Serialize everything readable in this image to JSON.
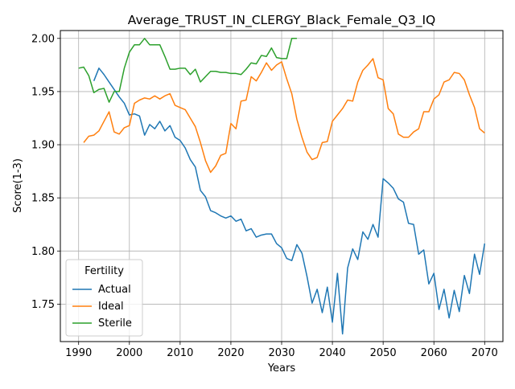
{
  "chart_data": {
    "type": "line",
    "title": "Average_TRUST_IN_CLERGY_Black_Female_Q3_IQ",
    "xlabel": "Years",
    "ylabel": "Score(1-3)",
    "xlim": [
      1986.4,
      2073.6
    ],
    "ylim": [
      1.7148,
      2.0074
    ],
    "xticks": [
      1990,
      2000,
      2010,
      2020,
      2030,
      2040,
      2050,
      2060,
      2070
    ],
    "yticks": [
      1.75,
      1.8,
      1.85,
      1.9,
      1.95,
      2.0
    ],
    "grid": true,
    "legend": {
      "title": "Fertility",
      "placement": "lower-left"
    },
    "series": [
      {
        "name": "Actual",
        "color": "#1f77b4",
        "x": [
          1993,
          1994,
          1995,
          1996,
          1997,
          1998,
          1999,
          2000,
          2001,
          2002,
          2003,
          2004,
          2005,
          2006,
          2007,
          2008,
          2009,
          2010,
          2011,
          2012,
          2013,
          2014,
          2015,
          2016,
          2017,
          2018,
          2019,
          2020,
          2021,
          2022,
          2023,
          2024,
          2025,
          2026,
          2027,
          2028,
          2029,
          2030,
          2031,
          2032,
          2033,
          2034,
          2035,
          2036,
          2037,
          2038,
          2039,
          2040,
          2041,
          2042,
          2043,
          2044,
          2045,
          2046,
          2047,
          2048,
          2049,
          2050,
          2051,
          2052,
          2053,
          2054,
          2055,
          2056,
          2057,
          2058,
          2059,
          2060,
          2061,
          2062,
          2063,
          2064,
          2065,
          2066,
          2067,
          2068,
          2069,
          2070
        ],
        "values": [
          1.96,
          1.972,
          1.966,
          1.959,
          1.952,
          1.945,
          1.939,
          1.928,
          1.929,
          1.927,
          1.909,
          1.919,
          1.915,
          1.922,
          1.913,
          1.918,
          1.907,
          1.904,
          1.897,
          1.886,
          1.879,
          1.857,
          1.851,
          1.838,
          1.836,
          1.833,
          1.831,
          1.833,
          1.828,
          1.83,
          1.819,
          1.821,
          1.813,
          1.815,
          1.816,
          1.816,
          1.807,
          1.803,
          1.793,
          1.791,
          1.806,
          1.798,
          1.776,
          1.751,
          1.764,
          1.742,
          1.766,
          1.733,
          1.779,
          1.722,
          1.784,
          1.802,
          1.792,
          1.818,
          1.811,
          1.825,
          1.813,
          1.868,
          1.864,
          1.859,
          1.849,
          1.846,
          1.826,
          1.825,
          1.797,
          1.801,
          1.769,
          1.779,
          1.745,
          1.764,
          1.737,
          1.763,
          1.743,
          1.777,
          1.76,
          1.797,
          1.778,
          1.807
        ]
      },
      {
        "name": "Ideal",
        "color": "#ff7f0e",
        "x": [
          1991,
          1992,
          1993,
          1994,
          1995,
          1996,
          1997,
          1998,
          1999,
          2000,
          2001,
          2002,
          2003,
          2004,
          2005,
          2006,
          2007,
          2008,
          2009,
          2010,
          2011,
          2012,
          2013,
          2014,
          2015,
          2016,
          2017,
          2018,
          2019,
          2020,
          2021,
          2022,
          2023,
          2024,
          2025,
          2026,
          2027,
          2028,
          2029,
          2030,
          2031,
          2032,
          2033,
          2034,
          2035,
          2036,
          2037,
          2038,
          2039,
          2040,
          2041,
          2042,
          2043,
          2044,
          2045,
          2046,
          2047,
          2048,
          2049,
          2050,
          2051,
          2052,
          2053,
          2054,
          2055,
          2056,
          2057,
          2058,
          2059,
          2060,
          2061,
          2062,
          2063,
          2064,
          2065,
          2066,
          2067,
          2068,
          2069,
          2070
        ],
        "values": [
          1.902,
          1.908,
          1.909,
          1.913,
          1.922,
          1.931,
          1.912,
          1.91,
          1.916,
          1.918,
          1.939,
          1.942,
          1.944,
          1.943,
          1.946,
          1.943,
          1.946,
          1.948,
          1.937,
          1.935,
          1.933,
          1.925,
          1.917,
          1.902,
          1.885,
          1.874,
          1.88,
          1.89,
          1.892,
          1.92,
          1.915,
          1.941,
          1.942,
          1.964,
          1.96,
          1.968,
          1.977,
          1.97,
          1.975,
          1.978,
          1.962,
          1.948,
          1.924,
          1.907,
          1.893,
          1.886,
          1.888,
          1.902,
          1.903,
          1.922,
          1.928,
          1.934,
          1.942,
          1.941,
          1.959,
          1.97,
          1.975,
          1.981,
          1.963,
          1.961,
          1.934,
          1.929,
          1.91,
          1.907,
          1.907,
          1.912,
          1.915,
          1.931,
          1.931,
          1.943,
          1.947,
          1.959,
          1.961,
          1.968,
          1.967,
          1.961,
          1.947,
          1.935,
          1.915,
          1.911
        ]
      },
      {
        "name": "Sterile",
        "color": "#2ca02c",
        "x": [
          1990,
          1991,
          1992,
          1993,
          1994,
          1995,
          1996,
          1997,
          1998,
          1999,
          2000,
          2001,
          2002,
          2003,
          2004,
          2005,
          2006,
          2007,
          2008,
          2009,
          2010,
          2011,
          2012,
          2013,
          2014,
          2015,
          2016,
          2017,
          2018,
          2019,
          2020,
          2021,
          2022,
          2023,
          2024,
          2025,
          2026,
          2027,
          2028,
          2029,
          2030,
          2031,
          2032,
          2033
        ],
        "values": [
          1.972,
          1.973,
          1.965,
          1.949,
          1.952,
          1.953,
          1.94,
          1.95,
          1.95,
          1.972,
          1.987,
          1.994,
          1.994,
          2.0,
          1.994,
          1.994,
          1.994,
          1.983,
          1.971,
          1.971,
          1.972,
          1.972,
          1.966,
          1.971,
          1.959,
          1.964,
          1.969,
          1.969,
          1.968,
          1.968,
          1.967,
          1.967,
          1.966,
          1.971,
          1.977,
          1.976,
          1.984,
          1.983,
          1.991,
          1.982,
          1.981,
          1.981,
          2.0,
          2.0
        ]
      }
    ]
  }
}
